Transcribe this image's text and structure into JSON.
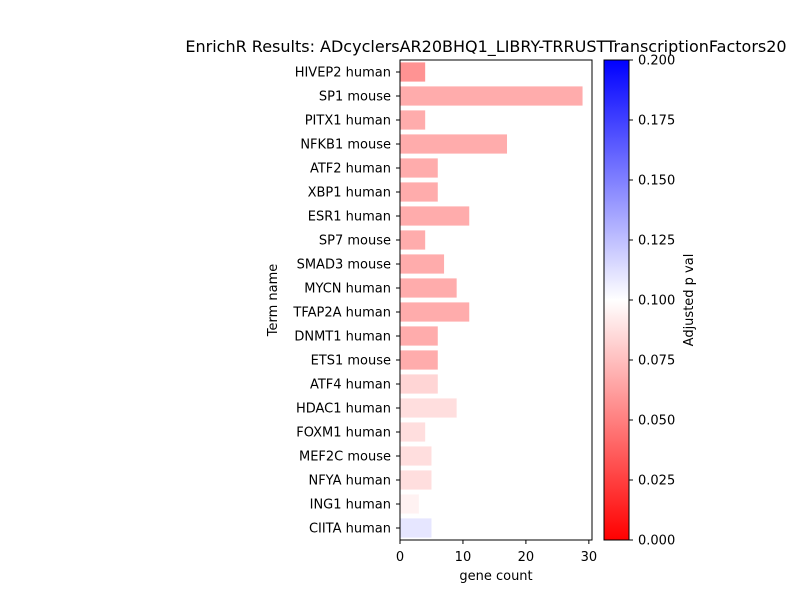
{
  "chart_data": {
    "type": "bar",
    "orientation": "horizontal",
    "title": "EnrichR Results: ADcyclersAR20BHQ1_LIBRY-TRRUSTTranscriptionFactors20",
    "xlabel": "gene count",
    "ylabel": "Term name",
    "xlim": [
      0,
      30.5
    ],
    "xticks": [
      0,
      10,
      20,
      30
    ],
    "grid": false,
    "categories": [
      "HIVEP2 human",
      "SP1 mouse",
      "PITX1 human",
      "NFKB1 mouse",
      "ATF2 human",
      "XBP1 human",
      "ESR1 human",
      "SP7 mouse",
      "SMAD3 mouse",
      "MYCN human",
      "TFAP2A human",
      "DNMT1 human",
      "ETS1 mouse",
      "ATF4 human",
      "HDAC1 human",
      "FOXM1 human",
      "MEF2C mouse",
      "NFYA human",
      "ING1 human",
      "CIITA human"
    ],
    "values": [
      4,
      29,
      4,
      17,
      6,
      6,
      11,
      4,
      7,
      9,
      11,
      6,
      6,
      6,
      9,
      4,
      5,
      5,
      3,
      5
    ],
    "color_values": [
      0.035,
      0.05,
      0.05,
      0.05,
      0.05,
      0.05,
      0.05,
      0.05,
      0.05,
      0.05,
      0.05,
      0.05,
      0.05,
      0.075,
      0.08,
      0.08,
      0.08,
      0.08,
      0.092,
      0.115
    ],
    "colorbar": {
      "label": "Adjusted p val",
      "range": [
        0,
        0.2
      ],
      "ticks": [
        "0.000",
        "0.025",
        "0.050",
        "0.075",
        "0.100",
        "0.125",
        "0.150",
        "0.175",
        "0.200"
      ],
      "colors": [
        "#ff0000",
        "#ffffff",
        "#0000ff"
      ]
    }
  }
}
